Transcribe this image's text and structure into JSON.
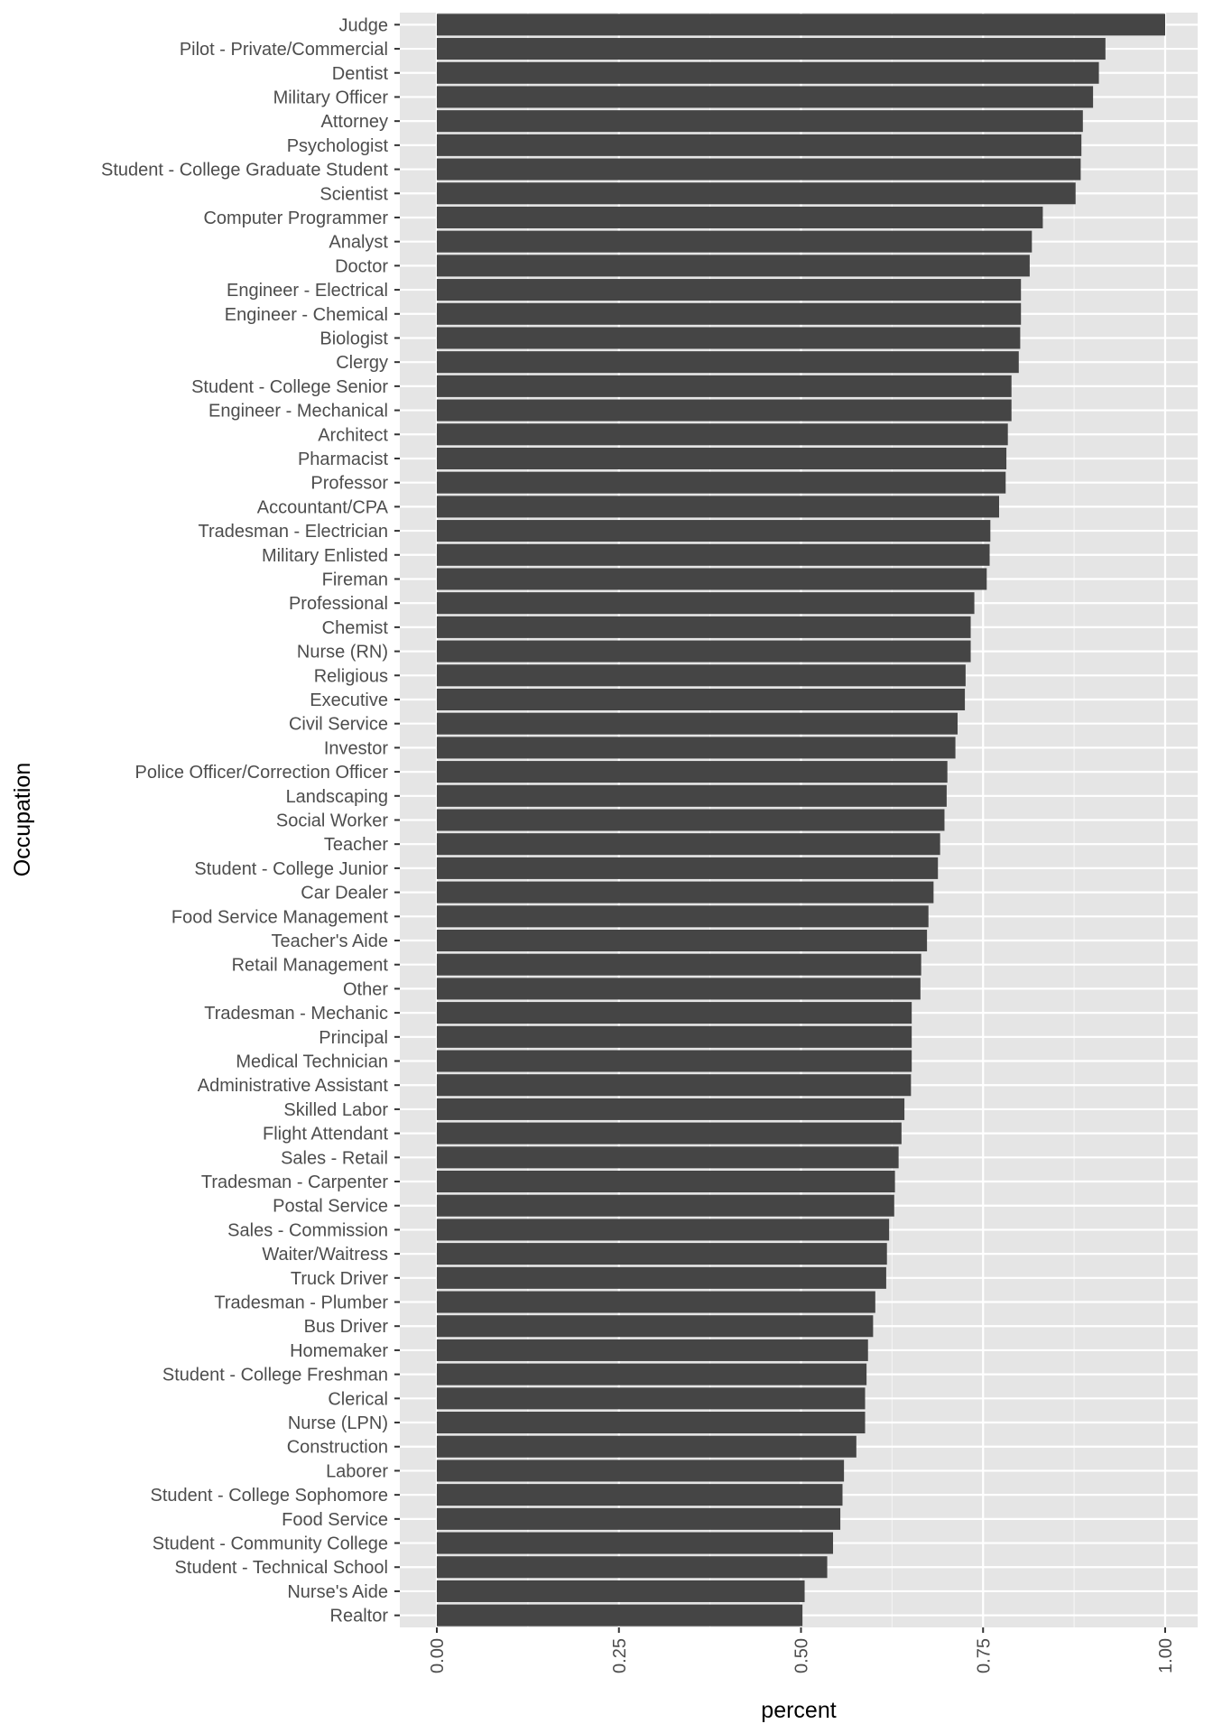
{
  "chart_data": {
    "type": "bar",
    "orientation": "horizontal",
    "xlabel": "percent",
    "ylabel": "Occupation",
    "xlim": [
      0,
      1.0
    ],
    "x_ticks": [
      "0.00",
      "0.25",
      "0.50",
      "0.75",
      "1.00"
    ],
    "x_tick_values": [
      0,
      0.25,
      0.5,
      0.75,
      1.0
    ],
    "grid": true,
    "legend": "none",
    "bar_color": "#454545",
    "panel_color": "#e5e5e5",
    "categories": [
      "Judge",
      "Pilot - Private/Commercial",
      "Dentist",
      "Military Officer",
      "Attorney",
      "Psychologist",
      "Student - College Graduate Student",
      "Scientist",
      "Computer Programmer",
      "Analyst",
      "Doctor",
      "Engineer - Electrical",
      "Engineer - Chemical",
      "Biologist",
      "Clergy",
      "Student - College Senior",
      "Engineer - Mechanical",
      "Architect",
      "Pharmacist",
      "Professor",
      "Accountant/CPA",
      "Tradesman - Electrician",
      "Military Enlisted",
      "Fireman",
      "Professional",
      "Chemist",
      "Nurse (RN)",
      "Religious",
      "Executive",
      "Civil Service",
      "Investor",
      "Police Officer/Correction Officer",
      "Landscaping",
      "Social Worker",
      "Teacher",
      "Student - College Junior",
      "Car Dealer",
      "Food Service Management",
      "Teacher's Aide",
      "Retail Management",
      "Other",
      "Tradesman - Mechanic",
      "Principal",
      "Medical Technician",
      "Administrative Assistant",
      "Skilled Labor",
      "Flight Attendant",
      "Sales - Retail",
      "Tradesman - Carpenter",
      "Postal Service",
      "Sales - Commission",
      "Waiter/Waitress",
      "Truck Driver",
      "Tradesman - Plumber",
      "Bus Driver",
      "Homemaker",
      "Student - College Freshman",
      "Clerical",
      "Nurse (LPN)",
      "Construction",
      "Laborer",
      "Student - College Sophomore",
      "Food Service",
      "Student - Community College",
      "Student - Technical School",
      "Nurse's Aide",
      "Realtor"
    ],
    "values": [
      1.0,
      0.918,
      0.909,
      0.901,
      0.887,
      0.885,
      0.884,
      0.877,
      0.832,
      0.817,
      0.814,
      0.802,
      0.802,
      0.801,
      0.799,
      0.789,
      0.789,
      0.784,
      0.782,
      0.781,
      0.772,
      0.76,
      0.759,
      0.755,
      0.738,
      0.733,
      0.733,
      0.726,
      0.725,
      0.715,
      0.712,
      0.701,
      0.7,
      0.697,
      0.691,
      0.688,
      0.682,
      0.675,
      0.673,
      0.665,
      0.664,
      0.652,
      0.652,
      0.652,
      0.651,
      0.642,
      0.638,
      0.634,
      0.629,
      0.628,
      0.621,
      0.618,
      0.617,
      0.602,
      0.599,
      0.592,
      0.59,
      0.588,
      0.588,
      0.576,
      0.559,
      0.557,
      0.554,
      0.544,
      0.536,
      0.505,
      0.502
    ]
  }
}
